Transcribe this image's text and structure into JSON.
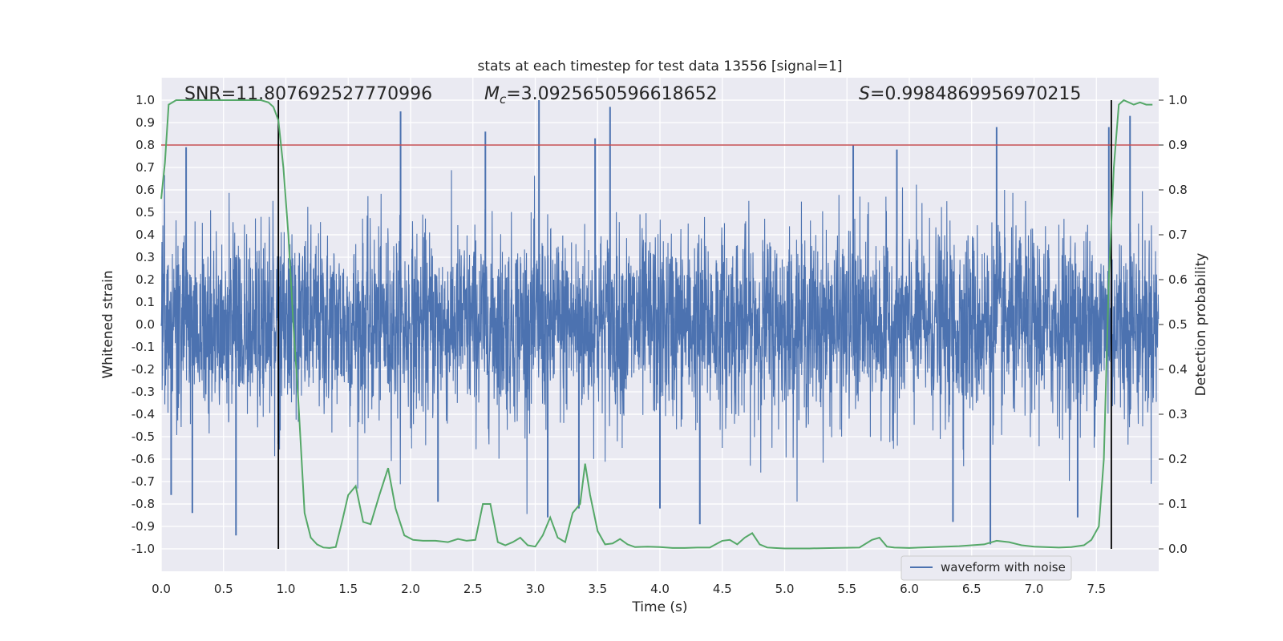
{
  "chart_data": {
    "type": "line",
    "title": "stats at each timestep for test data 13556 [signal=1]",
    "xlabel": "Time (s)",
    "ylabel": "Whitened strain",
    "y2label": "Detection probability",
    "xlim": [
      0,
      8
    ],
    "ylim": [
      -1.1,
      1.1
    ],
    "y2lim": [
      -0.05,
      1.05
    ],
    "xticks": [
      "0.0",
      "0.5",
      "1.0",
      "1.5",
      "2.0",
      "2.5",
      "3.0",
      "3.5",
      "4.0",
      "4.5",
      "5.0",
      "5.5",
      "6.0",
      "6.5",
      "7.0",
      "7.5"
    ],
    "yticks": [
      "1.0",
      "0.9",
      "0.8",
      "0.7",
      "0.6",
      "0.5",
      "0.4",
      "0.3",
      "0.2",
      "0.1",
      "0.0",
      "-0.1",
      "-0.2",
      "-0.3",
      "-0.4",
      "-0.5",
      "-0.6",
      "-0.7",
      "-0.8",
      "-0.9",
      "-1.0"
    ],
    "y2ticks": [
      "1.0",
      "0.9",
      "0.8",
      "0.7",
      "0.6",
      "0.5",
      "0.4",
      "0.3",
      "0.2",
      "0.1",
      "0.0"
    ],
    "grid": true,
    "legend": {
      "placement": "lower-right",
      "entries": [
        "waveform with noise"
      ]
    },
    "annotations": {
      "snr": "SNR=11.807692527770996",
      "mc_symbol": "M",
      "mc_subscript": "c",
      "mc_value": "=3.0925650596618652",
      "s_symbol": "S",
      "s_value": "=0.9984869956970215"
    },
    "threshold": 0.9,
    "vlines_x": [
      0.94,
      7.62
    ],
    "series": [
      {
        "name": "waveform with noise",
        "color": "#4c72b0",
        "axis": "left",
        "samples": 4096,
        "envelope_typical": 0.4,
        "peaks": [
          {
            "x": 0.2,
            "y": 0.79
          },
          {
            "x": 1.92,
            "y": 0.95
          },
          {
            "x": 2.6,
            "y": 0.86
          },
          {
            "x": 3.03,
            "y": 1.0
          },
          {
            "x": 3.48,
            "y": 0.83
          },
          {
            "x": 3.6,
            "y": 0.97
          },
          {
            "x": 5.55,
            "y": 0.8
          },
          {
            "x": 5.9,
            "y": 0.78
          },
          {
            "x": 6.7,
            "y": 0.88
          },
          {
            "x": 7.6,
            "y": 0.88
          },
          {
            "x": 7.77,
            "y": 0.93
          },
          {
            "x": 0.25,
            "y": -0.84
          },
          {
            "x": 0.6,
            "y": -0.94
          },
          {
            "x": 0.08,
            "y": -0.76
          },
          {
            "x": 3.1,
            "y": -0.86
          },
          {
            "x": 3.35,
            "y": -0.82
          },
          {
            "x": 4.0,
            "y": -0.82
          },
          {
            "x": 4.32,
            "y": -0.89
          },
          {
            "x": 6.35,
            "y": -0.88
          },
          {
            "x": 6.65,
            "y": -0.98
          },
          {
            "x": 7.35,
            "y": -0.86
          },
          {
            "x": 2.22,
            "y": -0.79
          }
        ]
      },
      {
        "name": "detection probability",
        "color": "#55a868",
        "axis": "right",
        "x": [
          0,
          0.03,
          0.06,
          0.12,
          0.2,
          0.3,
          0.5,
          0.7,
          0.8,
          0.86,
          0.9,
          0.94,
          0.98,
          1.02,
          1.06,
          1.1,
          1.15,
          1.2,
          1.25,
          1.3,
          1.35,
          1.4,
          1.45,
          1.5,
          1.56,
          1.62,
          1.68,
          1.75,
          1.82,
          1.88,
          1.95,
          2.02,
          2.1,
          2.2,
          2.3,
          2.38,
          2.45,
          2.52,
          2.58,
          2.64,
          2.7,
          2.76,
          2.82,
          2.88,
          2.94,
          3.0,
          3.06,
          3.12,
          3.18,
          3.24,
          3.3,
          3.36,
          3.4,
          3.44,
          3.5,
          3.56,
          3.62,
          3.68,
          3.74,
          3.8,
          3.9,
          4.0,
          4.1,
          4.2,
          4.3,
          4.4,
          4.5,
          4.56,
          4.62,
          4.68,
          4.74,
          4.8,
          4.86,
          4.92,
          5.0,
          5.2,
          5.4,
          5.6,
          5.7,
          5.76,
          5.82,
          5.88,
          6.0,
          6.2,
          6.4,
          6.6,
          6.7,
          6.8,
          6.9,
          7.0,
          7.2,
          7.3,
          7.4,
          7.46,
          7.52,
          7.56,
          7.6,
          7.64,
          7.68,
          7.72,
          7.8,
          7.85,
          7.9,
          7.95
        ],
        "y": [
          0.78,
          0.86,
          0.99,
          1.0,
          1.0,
          1.0,
          1.0,
          1.0,
          1.0,
          0.995,
          0.985,
          0.955,
          0.85,
          0.7,
          0.5,
          0.33,
          0.08,
          0.025,
          0.01,
          0.003,
          0.002,
          0.004,
          0.06,
          0.12,
          0.14,
          0.06,
          0.055,
          0.12,
          0.18,
          0.09,
          0.03,
          0.02,
          0.018,
          0.018,
          0.015,
          0.022,
          0.018,
          0.02,
          0.1,
          0.1,
          0.015,
          0.008,
          0.015,
          0.025,
          0.008,
          0.005,
          0.03,
          0.07,
          0.025,
          0.015,
          0.08,
          0.1,
          0.19,
          0.12,
          0.04,
          0.01,
          0.012,
          0.022,
          0.01,
          0.004,
          0.005,
          0.004,
          0.002,
          0.002,
          0.003,
          0.003,
          0.018,
          0.02,
          0.01,
          0.025,
          0.035,
          0.01,
          0.003,
          0.002,
          0.001,
          0.001,
          0.002,
          0.003,
          0.02,
          0.025,
          0.005,
          0.003,
          0.002,
          0.004,
          0.006,
          0.01,
          0.018,
          0.015,
          0.008,
          0.005,
          0.003,
          0.004,
          0.008,
          0.02,
          0.05,
          0.2,
          0.6,
          0.85,
          0.99,
          1.0,
          0.99,
          0.995,
          0.99,
          0.99
        ]
      }
    ]
  }
}
